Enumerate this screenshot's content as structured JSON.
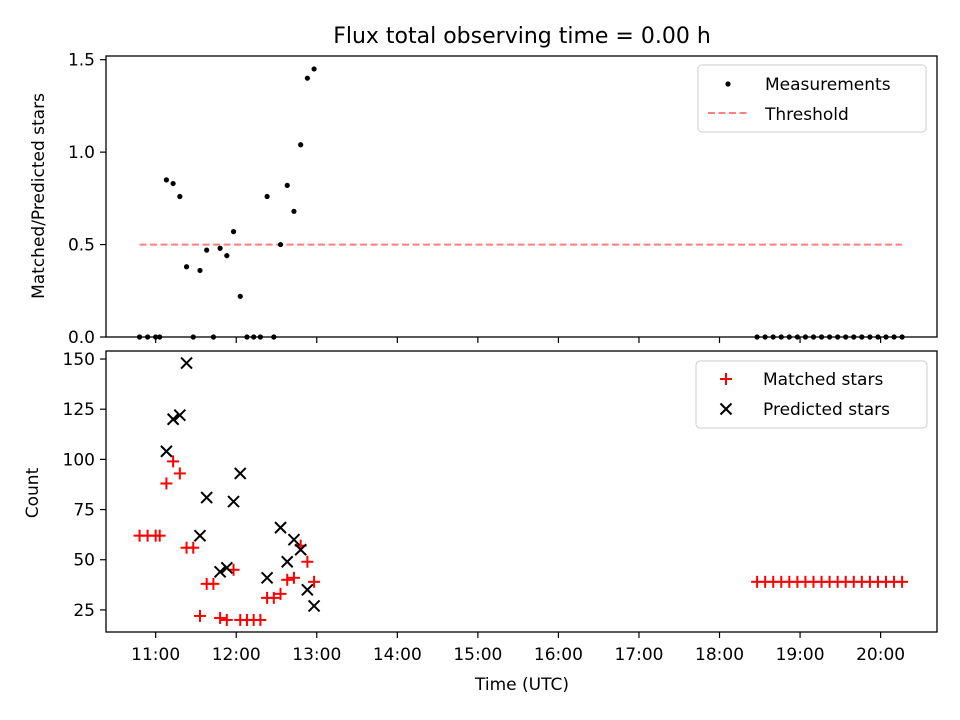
{
  "figure": {
    "title": "Flux total observing time = 0.00 h",
    "xlabel": "Time (UTC)"
  },
  "chart_data": [
    {
      "type": "scatter",
      "ylabel": "Matched/Predicted stars",
      "xlim": [
        "10:23",
        "20:42"
      ],
      "ylim": [
        0,
        1.52
      ],
      "yticks": [
        0.0,
        0.5,
        1.0,
        1.5
      ],
      "ytick_labels": [
        "0.0",
        "0.5",
        "1.0",
        "1.5"
      ],
      "legend_position": "upper right",
      "colors": {
        "measurements": "#000000",
        "threshold": "#ff7f7f"
      },
      "series": [
        {
          "name": "Measurements",
          "points": [
            [
              "10:48",
              0.0
            ],
            [
              "10:54",
              0.0
            ],
            [
              "11:00",
              0.0
            ],
            [
              "11:03",
              0.0
            ],
            [
              "11:08",
              0.85
            ],
            [
              "11:13",
              0.83
            ],
            [
              "11:18",
              0.76
            ],
            [
              "11:23",
              0.38
            ],
            [
              "11:28",
              0.0
            ],
            [
              "11:33",
              0.36
            ],
            [
              "11:38",
              0.47
            ],
            [
              "11:43",
              0.0
            ],
            [
              "11:48",
              0.48
            ],
            [
              "11:53",
              0.44
            ],
            [
              "11:58",
              0.57
            ],
            [
              "12:03",
              0.22
            ],
            [
              "12:08",
              0.0
            ],
            [
              "12:13",
              0.0
            ],
            [
              "12:18",
              0.0
            ],
            [
              "12:23",
              0.76
            ],
            [
              "12:28",
              0.0
            ],
            [
              "12:33",
              0.5
            ],
            [
              "12:38",
              0.82
            ],
            [
              "12:43",
              0.68
            ],
            [
              "12:48",
              1.04
            ],
            [
              "12:53",
              1.4
            ],
            [
              "12:58",
              1.45
            ],
            [
              "18:28",
              0.0
            ],
            [
              "18:34",
              0.0
            ],
            [
              "18:40",
              0.0
            ],
            [
              "18:46",
              0.0
            ],
            [
              "18:52",
              0.0
            ],
            [
              "18:58",
              0.0
            ],
            [
              "19:04",
              0.0
            ],
            [
              "19:10",
              0.0
            ],
            [
              "19:16",
              0.0
            ],
            [
              "19:22",
              0.0
            ],
            [
              "19:28",
              0.0
            ],
            [
              "19:34",
              0.0
            ],
            [
              "19:40",
              0.0
            ],
            [
              "19:46",
              0.0
            ],
            [
              "19:52",
              0.0
            ],
            [
              "19:58",
              0.0
            ],
            [
              "20:04",
              0.0
            ],
            [
              "20:10",
              0.0
            ],
            [
              "20:16",
              0.0
            ]
          ]
        },
        {
          "name": "Threshold",
          "points": [
            [
              "10:48",
              0.5
            ],
            [
              "20:16",
              0.5
            ]
          ]
        }
      ]
    },
    {
      "type": "scatter",
      "ylabel": "Count",
      "xlim": [
        "10:23",
        "20:42"
      ],
      "ylim": [
        14,
        154
      ],
      "yticks": [
        25,
        50,
        75,
        100,
        125,
        150
      ],
      "ytick_labels": [
        "25",
        "50",
        "75",
        "100",
        "125",
        "150"
      ],
      "xticks": [
        "11:00",
        "12:00",
        "13:00",
        "14:00",
        "15:00",
        "16:00",
        "17:00",
        "18:00",
        "19:00",
        "20:00"
      ],
      "legend_position": "upper right",
      "colors": {
        "matched": "#ff0000",
        "predicted": "#000000"
      },
      "series": [
        {
          "name": "Matched stars",
          "points": [
            [
              "10:48",
              62
            ],
            [
              "10:54",
              62
            ],
            [
              "11:00",
              62
            ],
            [
              "11:03",
              62
            ],
            [
              "11:08",
              88
            ],
            [
              "11:13",
              99
            ],
            [
              "11:18",
              93
            ],
            [
              "11:23",
              56
            ],
            [
              "11:28",
              56
            ],
            [
              "11:33",
              22
            ],
            [
              "11:38",
              38
            ],
            [
              "11:43",
              38
            ],
            [
              "11:48",
              21
            ],
            [
              "11:53",
              20
            ],
            [
              "11:58",
              45
            ],
            [
              "12:03",
              20
            ],
            [
              "12:08",
              20
            ],
            [
              "12:13",
              20
            ],
            [
              "12:18",
              20
            ],
            [
              "12:23",
              31
            ],
            [
              "12:28",
              31
            ],
            [
              "12:33",
              33
            ],
            [
              "12:38",
              40
            ],
            [
              "12:43",
              41
            ],
            [
              "12:48",
              57
            ],
            [
              "12:53",
              49
            ],
            [
              "12:58",
              39
            ],
            [
              "18:28",
              39
            ],
            [
              "18:34",
              39
            ],
            [
              "18:40",
              39
            ],
            [
              "18:46",
              39
            ],
            [
              "18:52",
              39
            ],
            [
              "18:58",
              39
            ],
            [
              "19:04",
              39
            ],
            [
              "19:10",
              39
            ],
            [
              "19:16",
              39
            ],
            [
              "19:22",
              39
            ],
            [
              "19:28",
              39
            ],
            [
              "19:34",
              39
            ],
            [
              "19:40",
              39
            ],
            [
              "19:46",
              39
            ],
            [
              "19:52",
              39
            ],
            [
              "19:58",
              39
            ],
            [
              "20:04",
              39
            ],
            [
              "20:10",
              39
            ],
            [
              "20:16",
              39
            ]
          ]
        },
        {
          "name": "Predicted stars",
          "points": [
            [
              "11:08",
              104
            ],
            [
              "11:13",
              120
            ],
            [
              "11:18",
              122
            ],
            [
              "11:23",
              148
            ],
            [
              "11:33",
              62
            ],
            [
              "11:38",
              81
            ],
            [
              "11:48",
              44
            ],
            [
              "11:53",
              46
            ],
            [
              "11:58",
              79
            ],
            [
              "12:03",
              93
            ],
            [
              "12:23",
              41
            ],
            [
              "12:33",
              66
            ],
            [
              "12:38",
              49
            ],
            [
              "12:43",
              60
            ],
            [
              "12:48",
              55
            ],
            [
              "12:53",
              35
            ],
            [
              "12:58",
              27
            ]
          ]
        }
      ]
    }
  ]
}
